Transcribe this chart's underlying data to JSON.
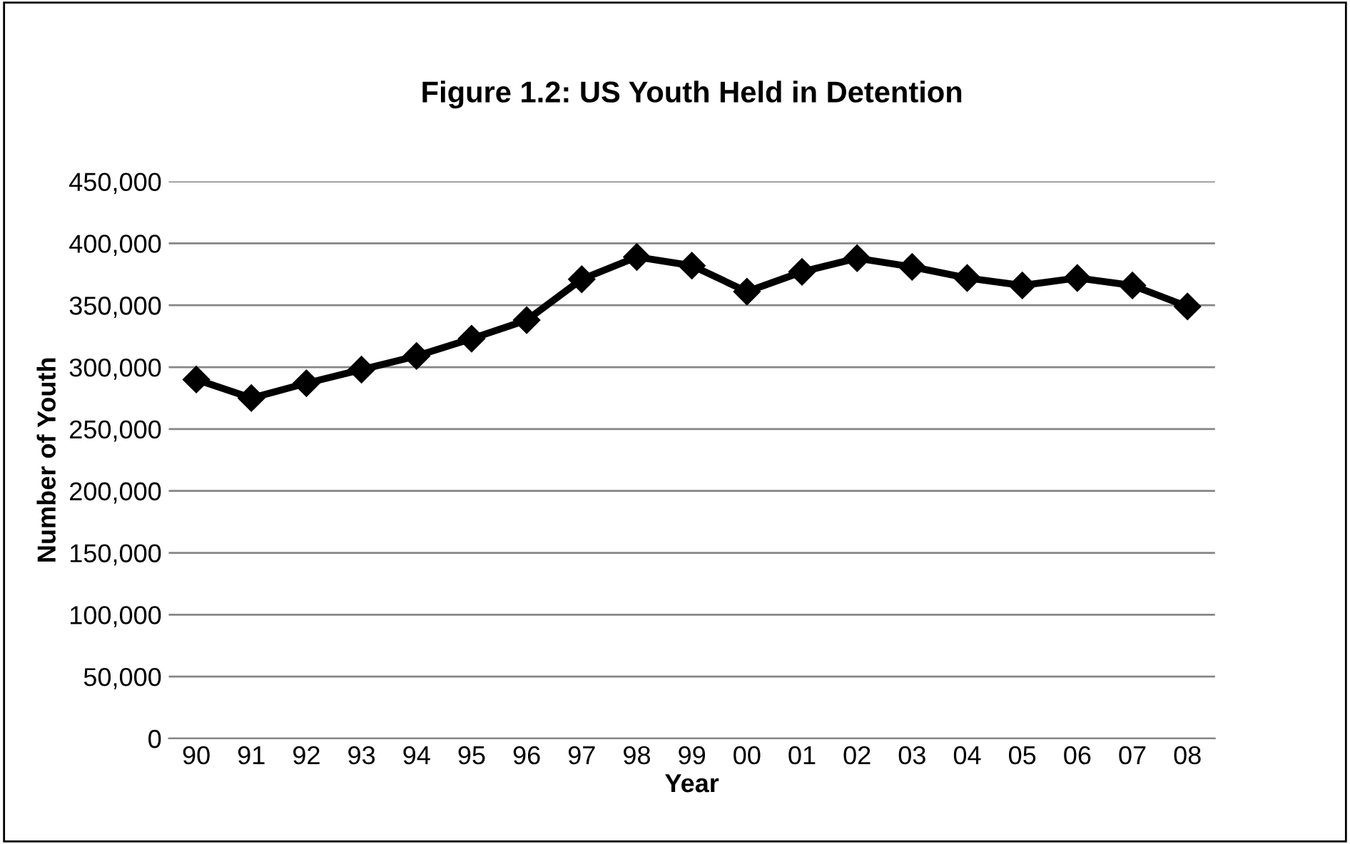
{
  "chart_data": {
    "type": "line",
    "title": "Figure 1.2: US Youth Held in Detention",
    "xlabel": "Year",
    "ylabel": "Number of Youth",
    "categories": [
      "90",
      "91",
      "92",
      "93",
      "94",
      "95",
      "96",
      "97",
      "98",
      "99",
      "00",
      "01",
      "02",
      "03",
      "04",
      "05",
      "06",
      "07",
      "08"
    ],
    "series": [
      {
        "color": "#000000",
        "values": [
          290000,
          275000,
          287000,
          298000,
          309000,
          323000,
          338000,
          371000,
          389000,
          382000,
          361000,
          377000,
          388000,
          381000,
          372000,
          366000,
          372000,
          366000,
          349000
        ]
      }
    ],
    "ylim": [
      0,
      450000
    ],
    "yticks": [
      {
        "value": 0,
        "label": "0"
      },
      {
        "value": 50000,
        "label": "50,000"
      },
      {
        "value": 100000,
        "label": "100,000"
      },
      {
        "value": 150000,
        "label": "150,000"
      },
      {
        "value": 200000,
        "label": "200,000"
      },
      {
        "value": 250000,
        "label": "250,000"
      },
      {
        "value": 300000,
        "label": "300,000"
      },
      {
        "value": 350000,
        "label": "350,000"
      },
      {
        "value": 400000,
        "label": "400,000"
      },
      {
        "value": 450000,
        "label": "450,000"
      }
    ],
    "grid": "y",
    "marker": "diamond",
    "line_style": "solid"
  }
}
